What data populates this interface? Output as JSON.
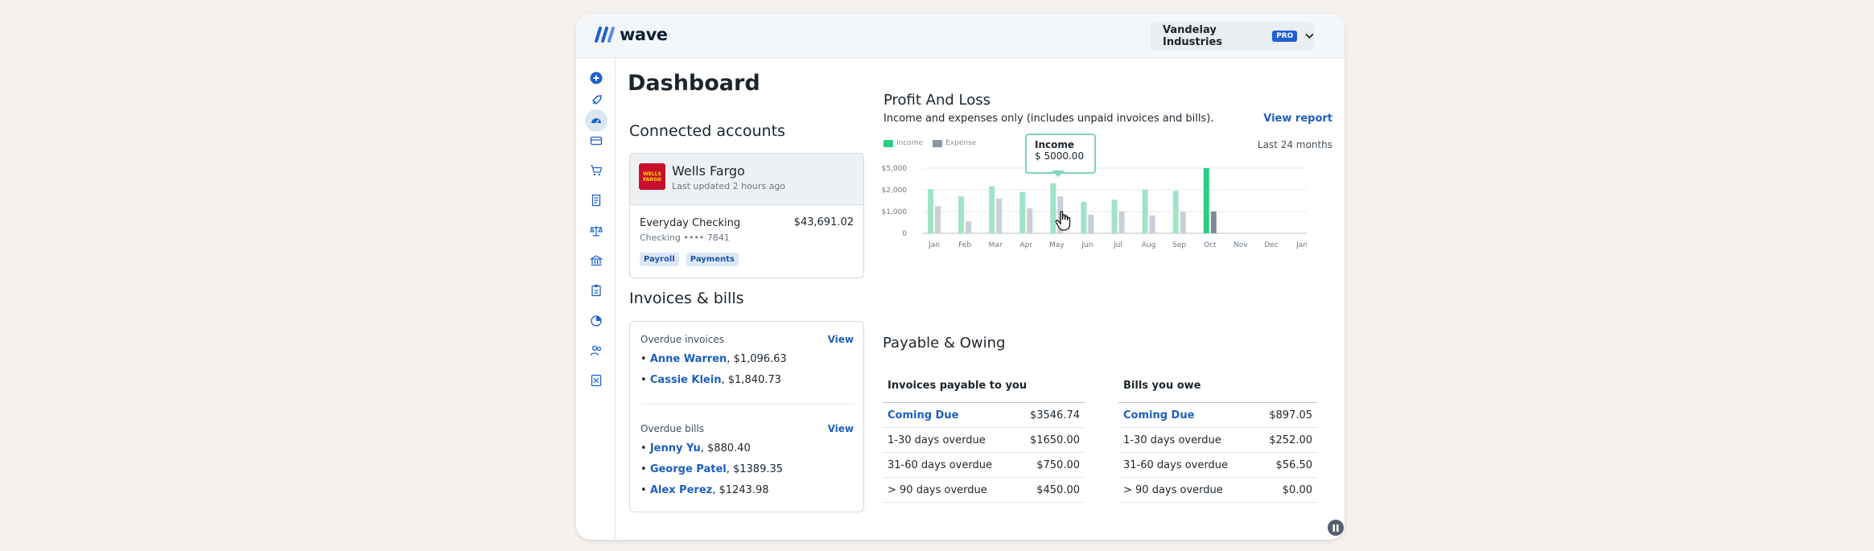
{
  "header": {
    "logo_text": "wave",
    "business_name": "Vandelay Industries",
    "plan_badge": "PRO"
  },
  "sidebar": {
    "icons": [
      "plus-icon",
      "rocket-icon",
      "dashboard-icon",
      "card-icon",
      "cart-icon",
      "receipt-icon",
      "scale-icon",
      "bank-icon",
      "clipboard-icon",
      "chart-icon",
      "people-icon",
      "calculator-icon"
    ]
  },
  "page_title": "Dashboard",
  "connected_accounts": {
    "heading": "Connected accounts",
    "bank_logo_text": [
      "WELLS",
      "FARGO"
    ],
    "bank_name": "Wells Fargo",
    "last_updated": "Last updated 2 hours ago",
    "account_name": "Everyday Checking",
    "account_detail": "Checking •••• 7841",
    "balance": "$43,691.02",
    "tags": [
      "Payroll",
      "Payments"
    ]
  },
  "invoices_bills": {
    "heading": "Invoices & bills",
    "overdue_invoices_label": "Overdue invoices",
    "overdue_invoices_view": "View",
    "overdue_invoices": [
      {
        "name": "Anne Warren",
        "amount": ", $1,096.63"
      },
      {
        "name": "Cassie Klein",
        "amount": ", $1,840.73"
      }
    ],
    "overdue_bills_label": "Overdue bills",
    "overdue_bills_view": "View",
    "overdue_bills": [
      {
        "name": "Jenny Yu",
        "amount": ", $880.40"
      },
      {
        "name": "George Patel",
        "amount": ", $1389.35"
      },
      {
        "name": "Alex Perez",
        "amount": ", $1243.98"
      }
    ]
  },
  "profit_loss": {
    "heading": "Profit And Loss",
    "subtitle": "Income and expenses only (includes unpaid invoices and bills).",
    "view_report": "View report",
    "period": "Last 24 months",
    "tooltip_label": "Income",
    "tooltip_value": "$ 5000.00"
  },
  "chart_data": {
    "type": "bar",
    "categories": [
      "Jan",
      "Feb",
      "Mar",
      "Apr",
      "May",
      "Jun",
      "Jul",
      "Aug",
      "Sep",
      "Oct",
      "Nov",
      "Dec",
      "Jan"
    ],
    "series": [
      {
        "name": "Income",
        "values": [
          2100,
          1700,
          2500,
          1900,
          2900,
          1450,
          1550,
          2050,
          1950,
          5000,
          null,
          null,
          null
        ]
      },
      {
        "name": "Expense",
        "values": [
          1250,
          550,
          1600,
          1150,
          1700,
          850,
          1000,
          820,
          980,
          1000,
          null,
          null,
          null
        ]
      }
    ],
    "y_ticks": [
      "$5,000",
      "$2,000",
      "$1,000",
      "0"
    ],
    "tick_values": [
      5000,
      2000,
      1000,
      0
    ],
    "highlighted_index": 9,
    "colors": {
      "income": "#9fe4c6",
      "income_active": "#2bcf82",
      "expense": "#c9cfd6",
      "expense_active": "#7d8896"
    }
  },
  "payable_owing": {
    "heading": "Payable & Owing",
    "invoices_header": "Invoices payable to you",
    "bills_header": "Bills you owe",
    "invoices_rows": [
      {
        "label": "Coming Due",
        "value": "$3546.74"
      },
      {
        "label": "1-30 days overdue",
        "value": "$1650.00"
      },
      {
        "label": "31-60 days overdue",
        "value": "$750.00"
      },
      {
        "label": "> 90 days overdue",
        "value": "$450.00"
      }
    ],
    "bills_rows": [
      {
        "label": "Coming Due",
        "value": "$897.05"
      },
      {
        "label": "1-30 days overdue",
        "value": "$252.00"
      },
      {
        "label": "31-60 days overdue",
        "value": "$56.50"
      },
      {
        "label": "> 90 days overdue",
        "value": "$0.00"
      }
    ]
  }
}
